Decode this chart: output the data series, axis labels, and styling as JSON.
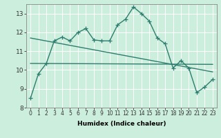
{
  "title": "",
  "xlabel": "Humidex (Indice chaleur)",
  "ylabel": "",
  "background_color": "#cceedd",
  "grid_color": "#ffffff",
  "line_color": "#2e7d6e",
  "xlim": [
    -0.5,
    23.5
  ],
  "ylim": [
    8,
    13.5
  ],
  "yticks": [
    8,
    9,
    10,
    11,
    12,
    13
  ],
  "xticks": [
    0,
    1,
    2,
    3,
    4,
    5,
    6,
    7,
    8,
    9,
    10,
    11,
    12,
    13,
    14,
    15,
    16,
    17,
    18,
    19,
    20,
    21,
    22,
    23
  ],
  "series1_x": [
    0,
    1,
    2,
    3,
    4,
    5,
    6,
    7,
    8,
    9,
    10,
    11,
    12,
    13,
    14,
    15,
    16,
    17,
    18,
    19,
    20,
    21,
    22,
    23
  ],
  "series1_y": [
    8.5,
    9.8,
    10.35,
    11.55,
    11.75,
    11.55,
    12.0,
    12.2,
    11.6,
    11.55,
    11.55,
    12.4,
    12.7,
    13.35,
    13.0,
    12.6,
    11.7,
    11.4,
    10.1,
    10.5,
    10.1,
    8.8,
    9.1,
    9.5
  ],
  "series2_x": [
    0,
    23
  ],
  "series2_y": [
    10.35,
    10.3
  ],
  "series3_x": [
    0,
    23
  ],
  "series3_y": [
    11.7,
    9.9
  ],
  "marker": "+",
  "markersize": 4,
  "linewidth": 1.0
}
